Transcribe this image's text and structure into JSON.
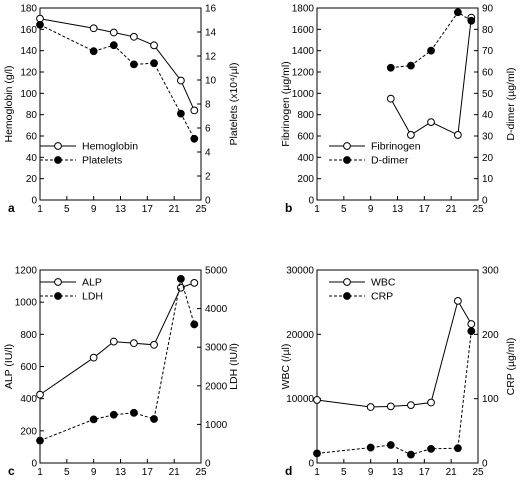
{
  "chart_data": [
    {
      "panel": "a",
      "type": "line",
      "x_ticks": [
        1,
        5,
        9,
        13,
        17,
        21,
        25
      ],
      "xlim": [
        1,
        25
      ],
      "left_axis": {
        "label": "Hemoglobin (g/l)",
        "ylim": [
          0,
          180
        ],
        "ticks": [
          0,
          20,
          40,
          60,
          80,
          100,
          120,
          140,
          160,
          180
        ]
      },
      "right_axis": {
        "label": "Platelets (x10⁴/µl)",
        "ylim": [
          0,
          16
        ],
        "ticks": [
          0,
          2,
          4,
          6,
          8,
          10,
          12,
          14,
          16
        ]
      },
      "legend_position": "bottom-left",
      "series": [
        {
          "name": "Hemoglobin",
          "axis": "left",
          "style": "solid",
          "marker": "open",
          "x": [
            1,
            9,
            12,
            15,
            18,
            22,
            24
          ],
          "y": [
            170,
            161,
            157,
            153,
            145,
            112,
            84
          ]
        },
        {
          "name": "Platelets",
          "axis": "right",
          "style": "dashed",
          "marker": "filled",
          "x": [
            1,
            9,
            12,
            15,
            18,
            22,
            24
          ],
          "y": [
            14.6,
            12.4,
            12.9,
            11.3,
            11.4,
            7.2,
            5.1
          ]
        }
      ]
    },
    {
      "panel": "b",
      "type": "line",
      "x_ticks": [
        1,
        5,
        9,
        13,
        17,
        21,
        25
      ],
      "xlim": [
        1,
        25
      ],
      "left_axis": {
        "label": "Fibrinogen (µg/ml)",
        "ylim": [
          0,
          1800
        ],
        "ticks": [
          0,
          200,
          400,
          600,
          800,
          1000,
          1200,
          1400,
          1600,
          1800
        ]
      },
      "right_axis": {
        "label": "D-dimer (µg/ml)",
        "ylim": [
          0,
          90
        ],
        "ticks": [
          0,
          10,
          20,
          30,
          40,
          50,
          60,
          70,
          80,
          90
        ]
      },
      "legend_position": "bottom-left",
      "series": [
        {
          "name": "Fibrinogen",
          "axis": "left",
          "style": "solid",
          "marker": "open",
          "x": [
            12,
            15,
            18,
            22,
            24
          ],
          "y": [
            950,
            610,
            730,
            610,
            1710
          ]
        },
        {
          "name": "D-dimer",
          "axis": "right",
          "style": "dashed",
          "marker": "filled",
          "x": [
            12,
            15,
            18,
            22,
            24
          ],
          "y": [
            62,
            63,
            70,
            88,
            84
          ]
        }
      ]
    },
    {
      "panel": "c",
      "type": "line",
      "x_ticks": [
        1,
        5,
        9,
        13,
        17,
        21,
        25
      ],
      "xlim": [
        1,
        25
      ],
      "left_axis": {
        "label": "ALP (IU/l)",
        "ylim": [
          0,
          1200
        ],
        "ticks": [
          0,
          200,
          400,
          600,
          800,
          1000,
          1200
        ]
      },
      "right_axis": {
        "label": "LDH (IU/l)",
        "ylim": [
          0,
          5000
        ],
        "ticks": [
          0,
          1000,
          2000,
          3000,
          4000,
          5000
        ]
      },
      "legend_position": "top-left",
      "series": [
        {
          "name": "ALP",
          "axis": "left",
          "style": "solid",
          "marker": "open",
          "x": [
            1,
            9,
            12,
            15,
            18,
            22,
            24
          ],
          "y": [
            425,
            655,
            755,
            745,
            735,
            1090,
            1120
          ]
        },
        {
          "name": "LDH",
          "axis": "right",
          "style": "dashed",
          "marker": "filled",
          "x": [
            1,
            9,
            12,
            15,
            18,
            22,
            24
          ],
          "y": [
            580,
            1130,
            1250,
            1300,
            1140,
            4770,
            3590
          ]
        }
      ]
    },
    {
      "panel": "d",
      "type": "line",
      "x_ticks": [
        1,
        5,
        9,
        13,
        17,
        21,
        25
      ],
      "xlim": [
        1,
        25
      ],
      "left_axis": {
        "label": "WBC (/µl)",
        "ylim": [
          0,
          30000
        ],
        "ticks": [
          0,
          10000,
          20000,
          30000
        ]
      },
      "right_axis": {
        "label": "CRP (µg/ml)",
        "ylim": [
          0,
          300
        ],
        "ticks": [
          0,
          100,
          200,
          300
        ]
      },
      "legend_position": "top-left",
      "series": [
        {
          "name": "WBC",
          "axis": "left",
          "style": "solid",
          "marker": "open",
          "x": [
            1,
            9,
            12,
            15,
            18,
            22,
            24
          ],
          "y": [
            9800,
            8700,
            8800,
            9000,
            9400,
            25200,
            21600
          ]
        },
        {
          "name": "CRP",
          "axis": "right",
          "style": "dashed",
          "marker": "filled",
          "x": [
            1,
            9,
            12,
            15,
            18,
            22,
            24
          ],
          "y": [
            15,
            24,
            28,
            13,
            22,
            23,
            205
          ]
        }
      ]
    }
  ]
}
